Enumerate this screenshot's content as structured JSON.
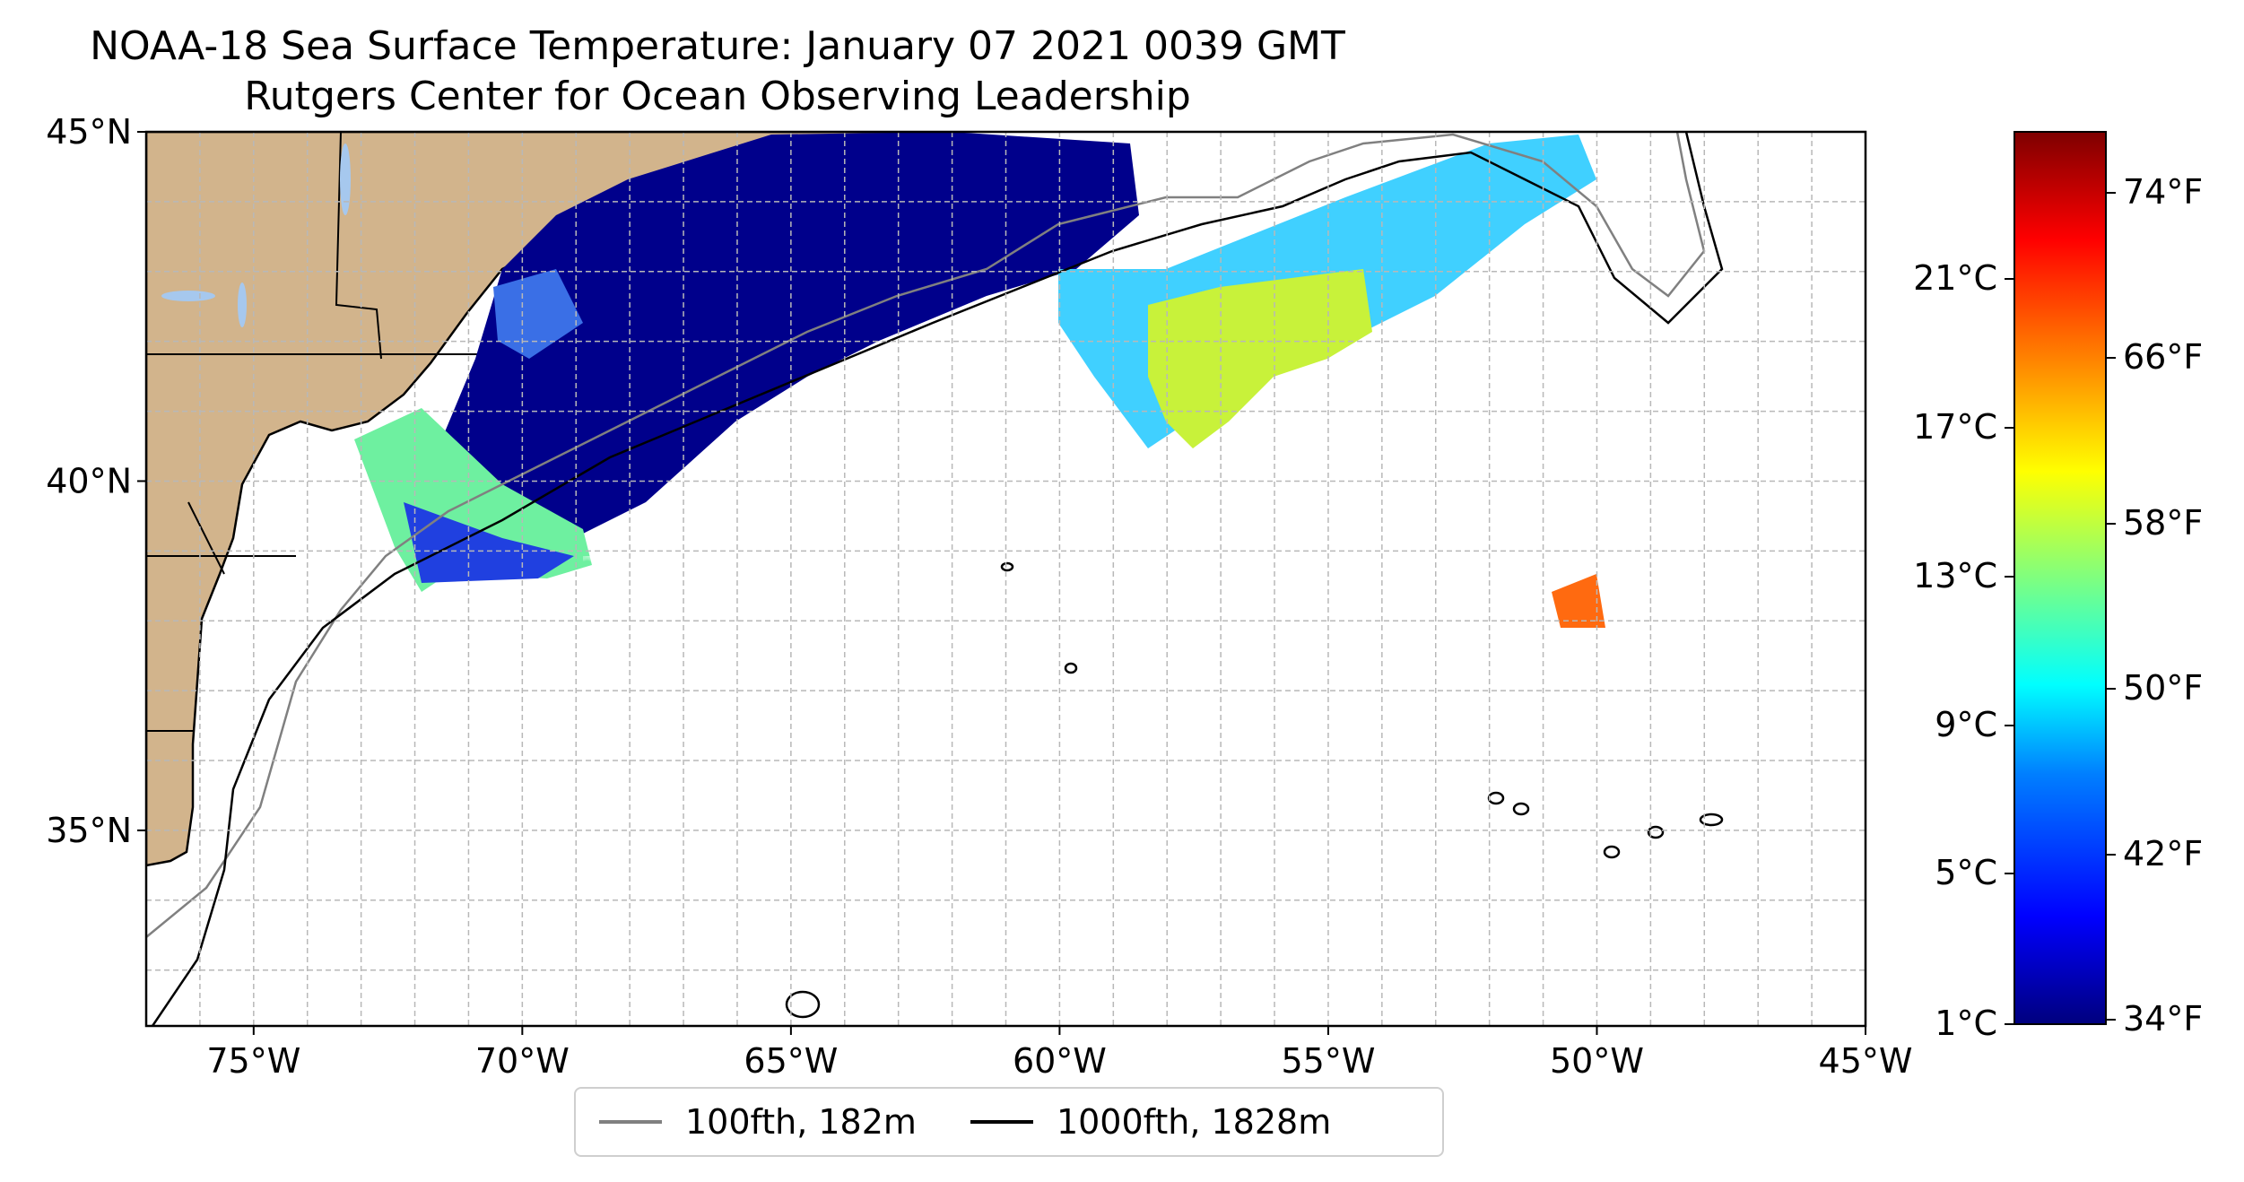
{
  "title": {
    "line1": "NOAA-18 Sea Surface Temperature: January 07 2021 0039 GMT",
    "line2": "Rutgers Center for Ocean Observing Leadership"
  },
  "map": {
    "lon_range": [
      -77,
      -45
    ],
    "lat_range": [
      32.2,
      45
    ],
    "lon_ticks": [
      "75°W",
      "70°W",
      "65°W",
      "60°W",
      "55°W",
      "50°W",
      "45°W"
    ],
    "lat_ticks": [
      "45°N",
      "40°N",
      "35°N"
    ],
    "land_color": "#d2b48c",
    "lake_color": "#a6c8ee"
  },
  "legend": {
    "items": [
      {
        "label": "100fth, 182m",
        "color": "#808080"
      },
      {
        "label": "1000fth, 1828m",
        "color": "#000000"
      }
    ]
  },
  "colorbar": {
    "celsius_ticks": [
      "21°C",
      "17°C",
      "13°C",
      "9°C",
      "5°C",
      "1°C"
    ],
    "fahrenheit_ticks": [
      "74°F",
      "66°F",
      "58°F",
      "50°F",
      "42°F",
      "34°F"
    ],
    "colormap": "jet"
  }
}
